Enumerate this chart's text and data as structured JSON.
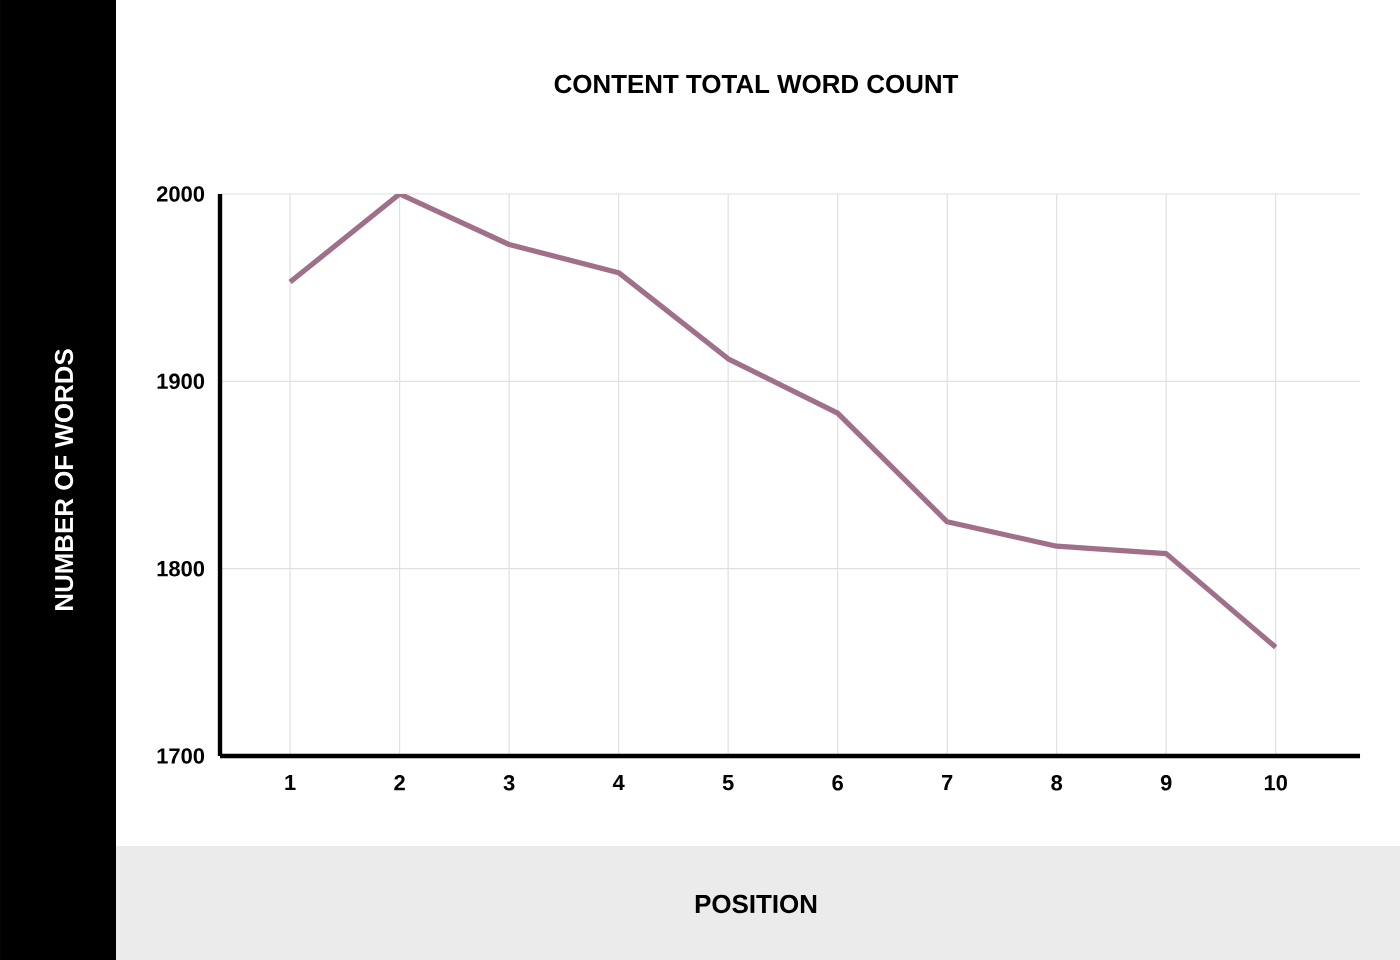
{
  "chart_data": {
    "type": "line",
    "title": "CONTENT TOTAL WORD COUNT",
    "xlabel": "POSITION",
    "ylabel": "NUMBER OF WORDS",
    "categories": [
      "1",
      "2",
      "3",
      "4",
      "5",
      "6",
      "7",
      "8",
      "9",
      "10"
    ],
    "series": [
      {
        "color": "#a0708a",
        "values": [
          1953,
          2000,
          1973,
          1958,
          1912,
          1883,
          1825,
          1812,
          1808,
          1758
        ]
      }
    ],
    "ylim": [
      1700,
      2000
    ],
    "yticks": [
      1700,
      1800,
      1900,
      2000
    ],
    "grid": true,
    "marker": "none",
    "line_style": "solid"
  }
}
